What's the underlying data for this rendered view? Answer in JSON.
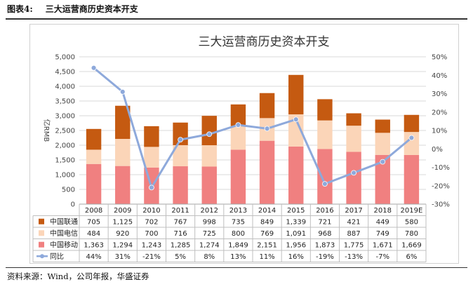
{
  "header": {
    "figure_no": "图表4:",
    "title": "三大运营商历史资本开支"
  },
  "source": "资料来源：Wind，公司年报，华盛证券",
  "chart_data": {
    "type": "bar",
    "stacked": true,
    "title": "三大运营商历史资本开支",
    "ylabel": "亿RMB",
    "ylim": [
      0,
      5000
    ],
    "y_ticks": [
      "0",
      "500",
      "1,000",
      "1,500",
      "2,000",
      "2,500",
      "3,000",
      "3,500",
      "4,000",
      "4,500",
      "5,000"
    ],
    "y2lim": [
      -30,
      50
    ],
    "y2_ticks": [
      "-30%",
      "-20%",
      "-10%",
      "0%",
      "10%",
      "20%",
      "30%",
      "40%",
      "50%"
    ],
    "grid": true,
    "categories": [
      "2008",
      "2009",
      "2010",
      "2011",
      "2012",
      "2013",
      "2014",
      "2015",
      "2016",
      "2017",
      "2018",
      "2019E"
    ],
    "series": [
      {
        "name": "中国移动",
        "color": "#f08080",
        "values": [
          1363,
          1294,
          1243,
          1285,
          1274,
          1849,
          2151,
          1956,
          1873,
          1775,
          1671,
          1669
        ],
        "labels": [
          "1,363",
          "1,294",
          "1,243",
          "1,285",
          "1,274",
          "1,849",
          "2,151",
          "1,956",
          "1,873",
          "1,775",
          "1,671",
          "1,669"
        ]
      },
      {
        "name": "中国电信",
        "color": "#fbd5b8",
        "values": [
          484,
          920,
          700,
          716,
          725,
          800,
          769,
          1091,
          968,
          887,
          749,
          780
        ],
        "labels": [
          "484",
          "920",
          "700",
          "716",
          "725",
          "800",
          "769",
          "1,091",
          "968",
          "887",
          "749",
          "780"
        ]
      },
      {
        "name": "中国联通",
        "color": "#c55a11",
        "values": [
          705,
          1125,
          702,
          767,
          998,
          735,
          849,
          1339,
          721,
          421,
          449,
          580
        ],
        "labels": [
          "705",
          "1,125",
          "702",
          "767",
          "998",
          "735",
          "849",
          "1,339",
          "721",
          "421",
          "449",
          "580"
        ]
      }
    ],
    "line_series": {
      "name": "同比",
      "color": "#8ea9db",
      "axis": "right",
      "values": [
        44,
        31,
        -21,
        5,
        8,
        13,
        11,
        16,
        -19,
        -13,
        -7,
        6
      ],
      "labels": [
        "44%",
        "31%",
        "-21%",
        "5%",
        "8%",
        "13%",
        "11%",
        "16%",
        "-19%",
        "-13%",
        "-7%",
        "6%"
      ]
    },
    "table_row_order": [
      "中国联通",
      "中国电信",
      "中国移动",
      "同比"
    ]
  }
}
